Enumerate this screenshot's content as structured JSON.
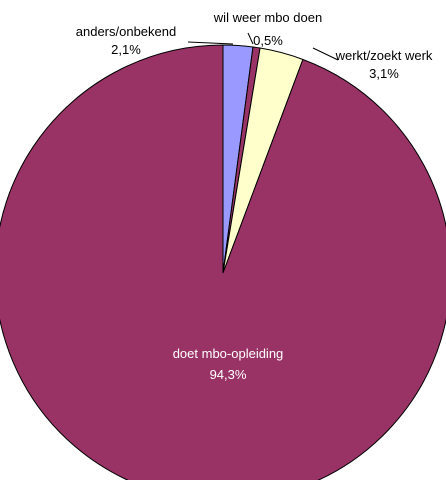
{
  "chart_data": {
    "type": "pie",
    "slices": [
      {
        "name": "anders/onbekend",
        "value": 2.1,
        "label": "2,1%",
        "color": "#9999ff"
      },
      {
        "name": "wil weer mbo doen",
        "value": 0.5,
        "label": "0,5%",
        "color": "#993366"
      },
      {
        "name": "werkt/zoekt werk",
        "value": 3.1,
        "label": "3,1%",
        "color": "#ffffcc"
      },
      {
        "name": "doet mbo-opleiding",
        "value": 94.3,
        "label": "94,3%",
        "color": "#993366"
      }
    ],
    "start_angle_deg": 0,
    "direction": "clockwise",
    "legend": "none"
  }
}
